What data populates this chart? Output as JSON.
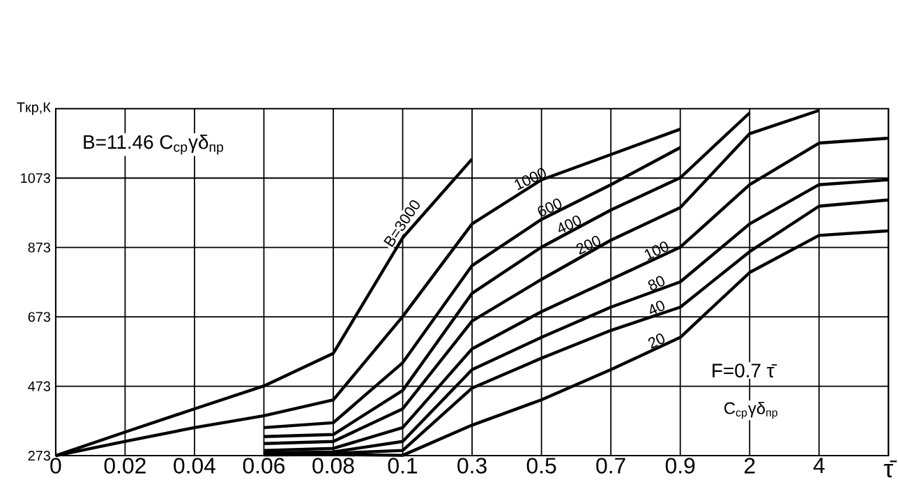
{
  "chart_data": {
    "type": "line",
    "xlabel": "τ̄",
    "ylabel": "Tкр,К",
    "annotations": [
      "B=11.46 C$_{ср}$γδ$_{пр}$",
      "F=0.7 τ̄",
      "C$_{ср}$γδ$_{пр}$"
    ],
    "categories": [
      "0",
      "0.02",
      "0.04",
      "0.06",
      "0.08",
      "0.1",
      "0.3",
      "0.5",
      "0.7",
      "0.9",
      "2",
      "4",
      null
    ],
    "series": [
      {
        "name": "B=3000",
        "color": "#000000",
        "values": [
          273,
          341,
          408,
          474,
          568,
          901,
          1128,
          null,
          null,
          null,
          null,
          null,
          null
        ]
      },
      {
        "name": "1000",
        "color": "#000000",
        "values": [
          273,
          314,
          354,
          388,
          434,
          674,
          941,
          1068,
          1141,
          1214,
          null,
          null,
          null
        ]
      },
      {
        "name": "600",
        "color": "#000000",
        "values": [
          null,
          null,
          null,
          354,
          368,
          541,
          821,
          954,
          1054,
          1161,
          null,
          null,
          null
        ]
      },
      {
        "name": "400",
        "color": "#000000",
        "values": [
          null,
          null,
          null,
          328,
          334,
          461,
          741,
          874,
          981,
          1074,
          1261,
          null,
          null
        ]
      },
      {
        "name": "200",
        "color": "#000000",
        "values": [
          null,
          null,
          null,
          308,
          314,
          408,
          661,
          781,
          894,
          988,
          1201,
          1268,
          null
        ]
      },
      {
        "name": "100",
        "color": "#000000",
        "values": [
          null,
          null,
          null,
          288,
          294,
          354,
          581,
          688,
          781,
          874,
          1054,
          1174,
          1188
        ]
      },
      {
        "name": "80",
        "color": "#000000",
        "values": [
          null,
          null,
          null,
          281,
          284,
          314,
          521,
          614,
          701,
          774,
          941,
          1054,
          1068
        ]
      },
      {
        "name": "40",
        "color": "#000000",
        "values": [
          null,
          null,
          null,
          278,
          280,
          288,
          468,
          554,
          634,
          701,
          861,
          992,
          1010
        ]
      },
      {
        "name": "20",
        "color": "#000000",
        "values": [
          null,
          null,
          null,
          275,
          276,
          274,
          361,
          434,
          521,
          614,
          801,
          908,
          921
        ]
      }
    ],
    "ylim": [
      273,
      1273
    ],
    "yticks": [
      273,
      473,
      673,
      873,
      1073
    ],
    "grid": true,
    "line_style": "solid"
  }
}
